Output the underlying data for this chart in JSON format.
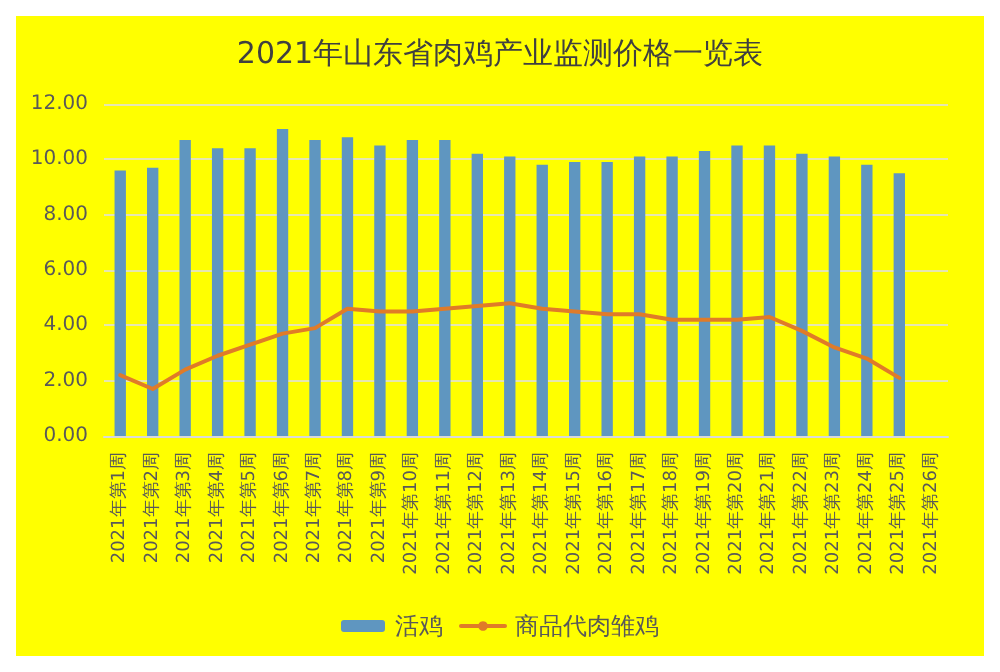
{
  "chart_data": {
    "type": "bar",
    "title": "2021年山东省肉鸡产业监测价格一览表",
    "categories": [
      "2021年第1周",
      "2021年第2周",
      "2021年第3周",
      "2021年第4周",
      "2021年第5周",
      "2021年第6周",
      "2021年第7周",
      "2021年第8周",
      "2021年第9周",
      "2021年第10周",
      "2021年第11周",
      "2021年第12周",
      "2021年第13周",
      "2021年第14周",
      "2021年第15周",
      "2021年第16周",
      "2021年第17周",
      "2021年第18周",
      "2021年第19周",
      "2021年第20周",
      "2021年第21周",
      "2021年第22周",
      "2021年第23周",
      "2021年第24周",
      "2021年第25周",
      "2021年第26周"
    ],
    "series": [
      {
        "name": "活鸡",
        "color": "#5f96c0",
        "values": [
          9.6,
          9.7,
          10.7,
          10.4,
          10.4,
          11.1,
          10.7,
          10.8,
          10.5,
          10.7,
          10.7,
          10.2,
          10.1,
          9.8,
          9.9,
          9.9,
          10.1,
          10.1,
          10.3,
          10.5,
          10.5,
          10.2,
          10.1,
          9.8,
          9.5,
          null
        ]
      },
      {
        "name": "商品代肉雏鸡",
        "type": "line",
        "color": "#e07b28",
        "values": [
          2.2,
          1.7,
          2.4,
          2.9,
          3.3,
          3.7,
          3.9,
          4.6,
          4.5,
          4.5,
          4.6,
          4.7,
          4.8,
          4.6,
          4.5,
          4.4,
          4.4,
          4.2,
          4.2,
          4.2,
          4.3,
          3.8,
          3.2,
          2.8,
          2.1,
          null
        ]
      }
    ],
    "ylim": [
      0,
      12
    ],
    "yticks": [
      {
        "value": 0,
        "label": "0.00"
      },
      {
        "value": 2,
        "label": "2.00"
      },
      {
        "value": 4,
        "label": "4.00"
      },
      {
        "value": 6,
        "label": "6.00"
      },
      {
        "value": 8,
        "label": "8.00"
      },
      {
        "value": 10,
        "label": "10.00"
      },
      {
        "value": 12,
        "label": "12.00"
      }
    ],
    "grid": "y",
    "legend": "bottom",
    "marker": "none",
    "line_style": "solid"
  }
}
